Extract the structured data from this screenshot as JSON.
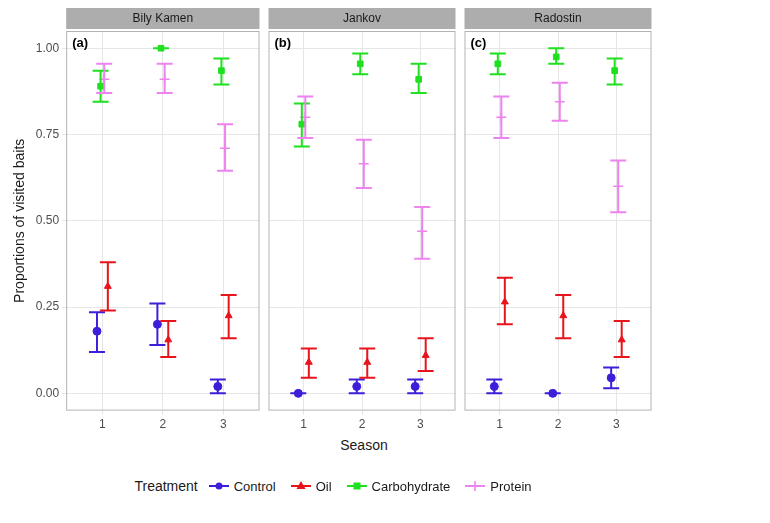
{
  "chart_data": {
    "type": "scatter",
    "x_label": "Season",
    "y_label": "Proportions of visited baits",
    "legend": "bottom",
    "legend_title": "Treatment",
    "grid": true,
    "x": [
      1,
      2,
      3
    ],
    "xlim": [
      0.4,
      3.6
    ],
    "xticks": [
      1,
      2,
      3
    ],
    "ylim": [
      -0.05,
      1.05
    ],
    "yticks": [
      {
        "value": 0,
        "label": "0.00"
      },
      0.25,
      {
        "value": 0.5,
        "label": "0.50"
      },
      0.75,
      {
        "value": 1,
        "label": "1.00"
      }
    ],
    "series": [
      {
        "name": "Control",
        "color": "#3c1fd8",
        "marker": "circle"
      },
      {
        "name": "Oil",
        "color": "#e8141c",
        "marker": "triangle"
      },
      {
        "name": "Carbohydrate",
        "color": "#1fe01f",
        "marker": "square"
      },
      {
        "name": "Protein",
        "color": "#ee82ee",
        "marker": "cross"
      }
    ],
    "panels": [
      {
        "title": "Bily Kamen",
        "annotation": "(a)",
        "series": [
          {
            "values": [
              0.18,
              0.2,
              0.02
            ],
            "lower": [
              0.12,
              0.14,
              0.0
            ],
            "upper": [
              0.235,
              0.26,
              0.04
            ]
          },
          {
            "values": [
              0.31,
              0.155,
              0.225
            ],
            "lower": [
              0.24,
              0.105,
              0.16
            ],
            "upper": [
              0.38,
              0.21,
              0.285
            ]
          },
          {
            "values": [
              0.89,
              1.0,
              0.935
            ],
            "lower": [
              0.845,
              1.0,
              0.895
            ],
            "upper": [
              0.935,
              1.0,
              0.97
            ]
          },
          {
            "values": [
              0.91,
              0.91,
              0.71
            ],
            "lower": [
              0.87,
              0.87,
              0.645
            ],
            "upper": [
              0.955,
              0.955,
              0.78
            ]
          }
        ]
      },
      {
        "title": "Jankov",
        "annotation": "(b)",
        "series": [
          {
            "values": [
              0.0,
              0.02,
              0.02
            ],
            "lower": [
              0.0,
              0.0,
              0.0
            ],
            "upper": [
              0.0,
              0.04,
              0.04
            ]
          },
          {
            "values": [
              0.09,
              0.09,
              0.11
            ],
            "lower": [
              0.045,
              0.045,
              0.065
            ],
            "upper": [
              0.13,
              0.13,
              0.16
            ]
          },
          {
            "values": [
              0.78,
              0.955,
              0.91
            ],
            "lower": [
              0.715,
              0.925,
              0.87
            ],
            "upper": [
              0.84,
              0.985,
              0.955
            ]
          },
          {
            "values": [
              0.8,
              0.665,
              0.47
            ],
            "lower": [
              0.74,
              0.595,
              0.39
            ],
            "upper": [
              0.86,
              0.735,
              0.54
            ]
          }
        ]
      },
      {
        "title": "Radostin",
        "annotation": "(c)",
        "series": [
          {
            "values": [
              0.02,
              0.0,
              0.045
            ],
            "lower": [
              0.0,
              0.0,
              0.015
            ],
            "upper": [
              0.04,
              0.0,
              0.075
            ]
          },
          {
            "values": [
              0.265,
              0.225,
              0.155
            ],
            "lower": [
              0.2,
              0.16,
              0.105
            ],
            "upper": [
              0.335,
              0.285,
              0.21
            ]
          },
          {
            "values": [
              0.955,
              0.975,
              0.935
            ],
            "lower": [
              0.925,
              0.955,
              0.895
            ],
            "upper": [
              0.985,
              1.0,
              0.97
            ]
          },
          {
            "values": [
              0.8,
              0.845,
              0.6
            ],
            "lower": [
              0.74,
              0.79,
              0.525
            ],
            "upper": [
              0.86,
              0.9,
              0.675
            ]
          }
        ]
      }
    ]
  }
}
